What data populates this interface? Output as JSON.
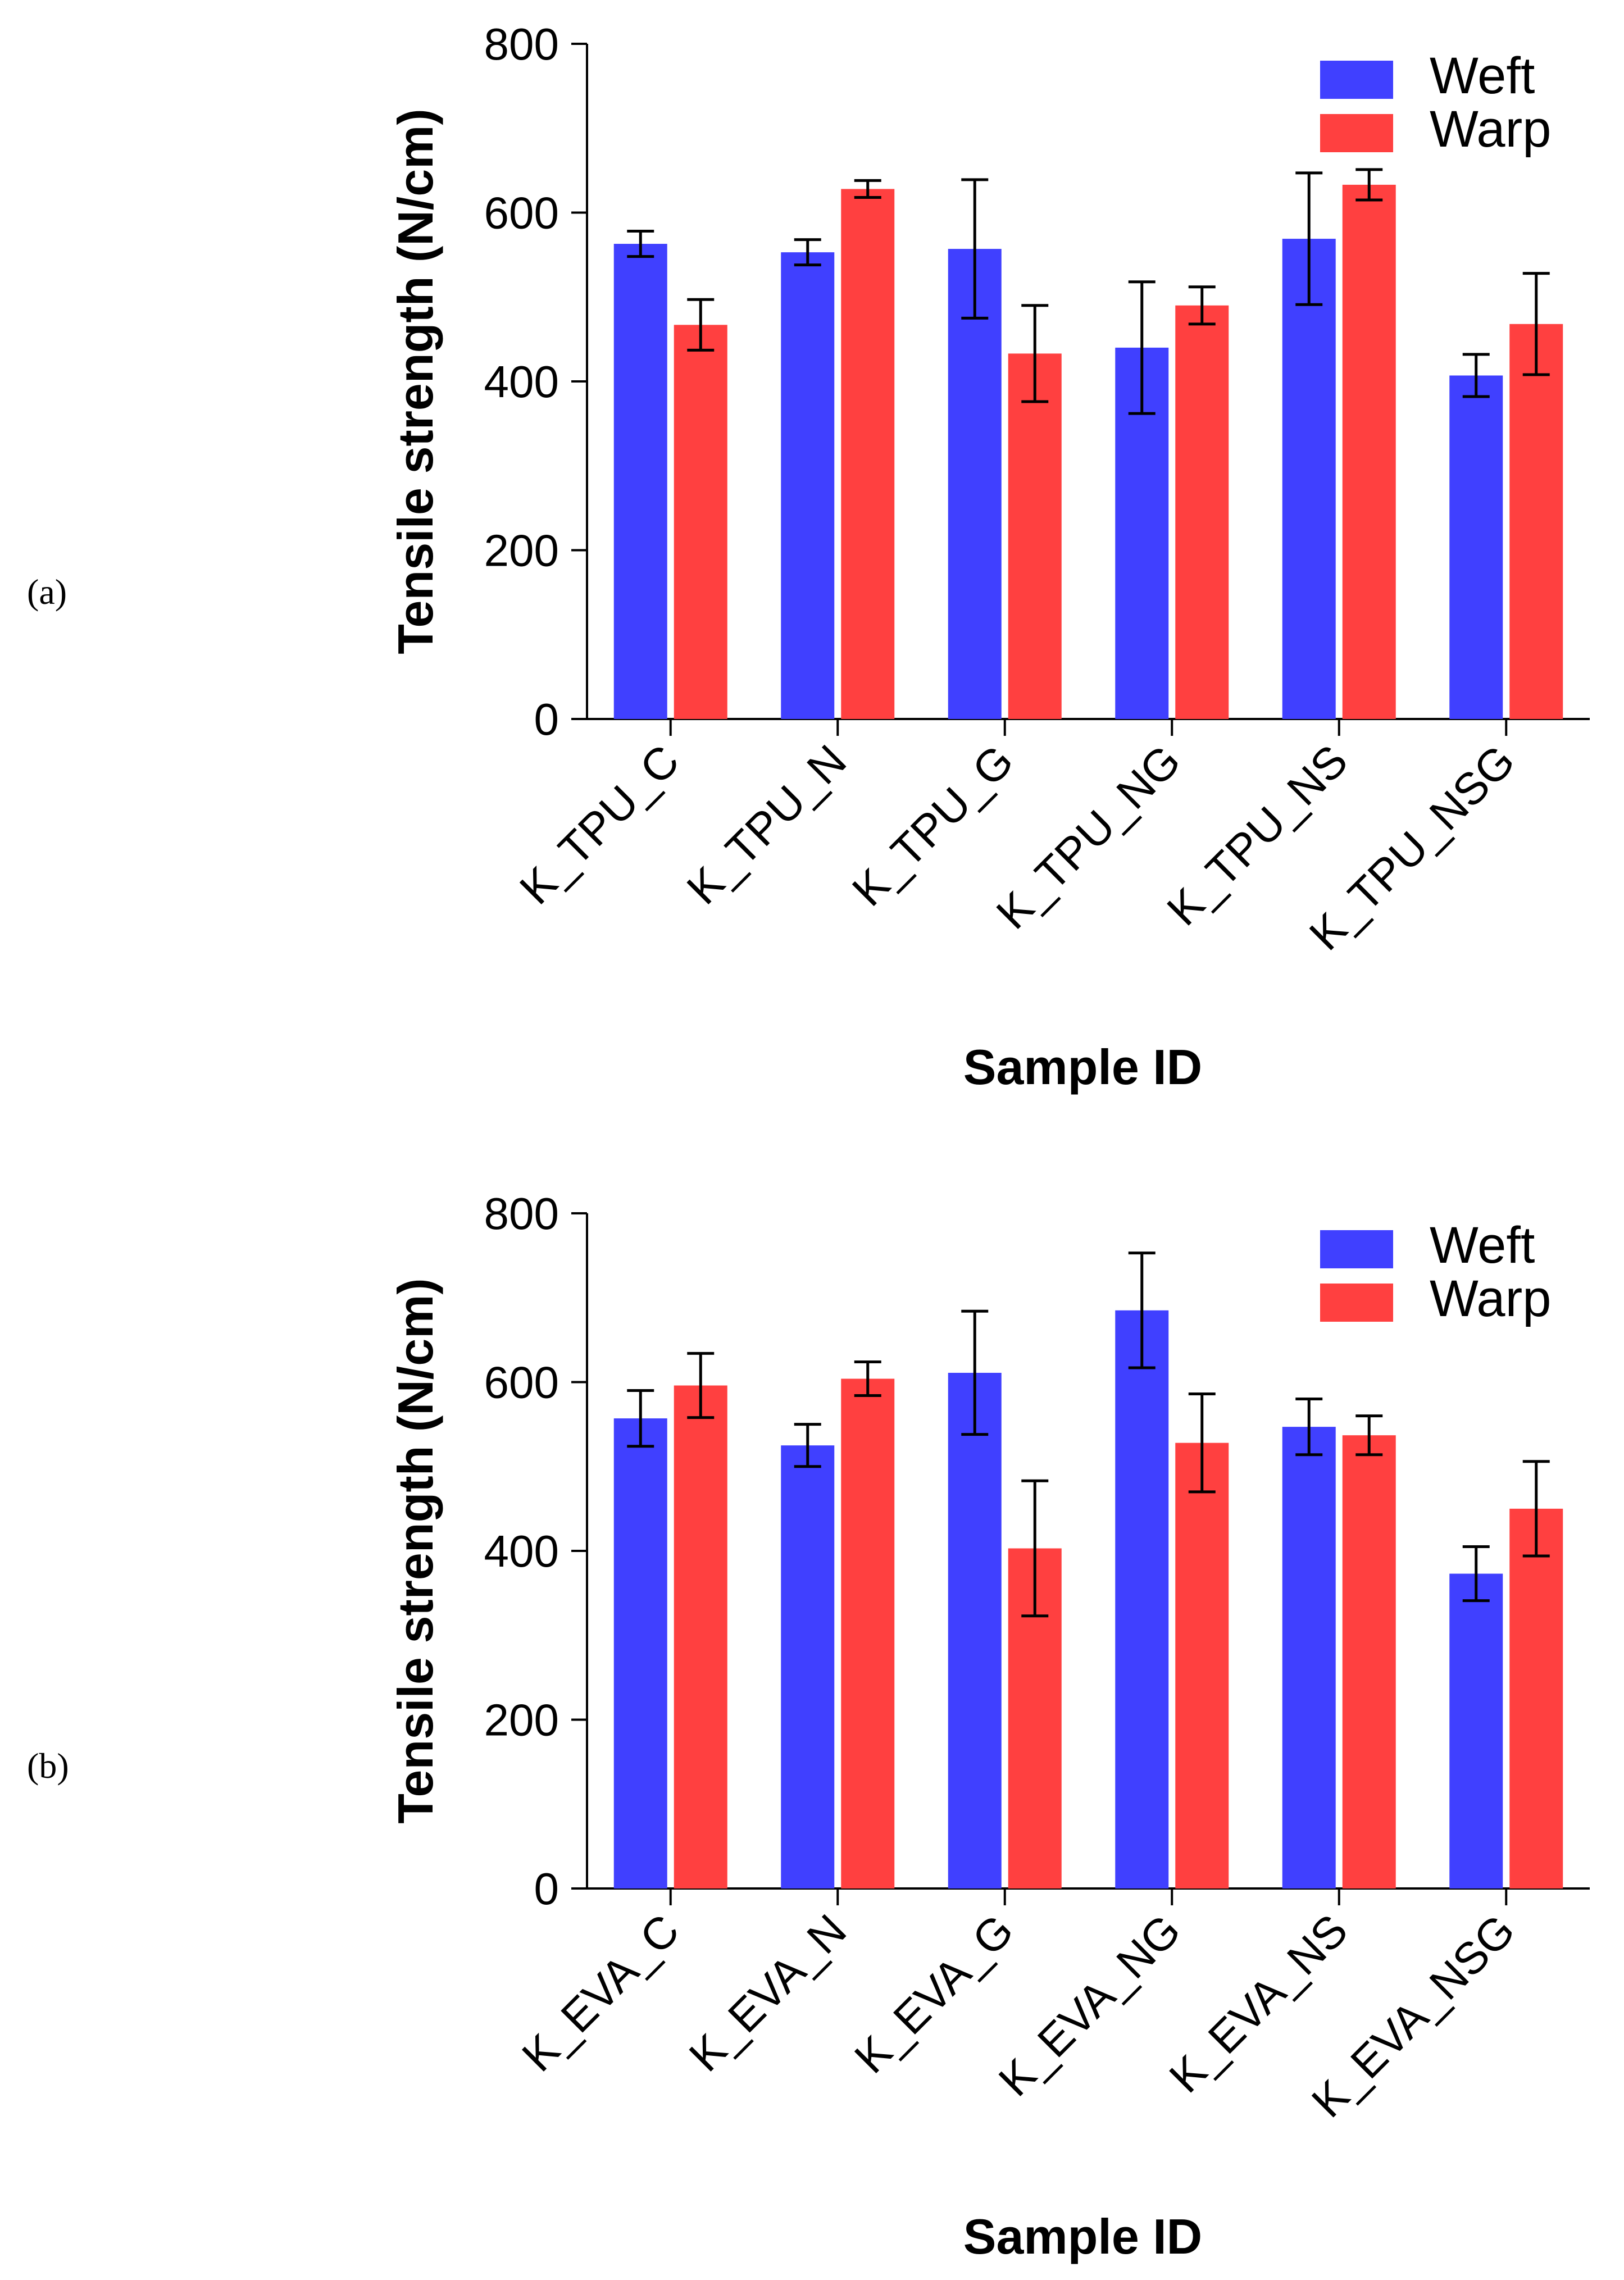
{
  "figure": {
    "panels": [
      "(a)",
      "(b)"
    ]
  },
  "colors": {
    "weft": "#4040FF",
    "warp": "#FF4040",
    "axis": "#000000"
  },
  "chart_data": [
    {
      "type": "bar",
      "panel_label": "(a)",
      "title": "",
      "xlabel": "Sample ID",
      "ylabel": "Tensile strength (N/cm)",
      "ylim": [
        0,
        800
      ],
      "yticks": [
        "0",
        "200",
        "400",
        "600",
        "800"
      ],
      "legend_position": "top-right",
      "categories": [
        "K_TPU_C",
        "K_TPU_N",
        "K_TPU_G",
        "K_TPU_NG",
        "K_TPU_NS",
        "K_TPU_NSG"
      ],
      "series": [
        {
          "name": "Weft",
          "values": [
            563,
            553,
            557,
            440,
            569,
            407
          ],
          "errors": [
            15,
            15,
            82,
            78,
            78,
            25
          ]
        },
        {
          "name": "Warp",
          "values": [
            467,
            628,
            433,
            490,
            633,
            468
          ],
          "errors": [
            30,
            10,
            57,
            22,
            18,
            60
          ]
        }
      ]
    },
    {
      "type": "bar",
      "panel_label": "(b)",
      "title": "",
      "xlabel": "Sample ID",
      "ylabel": "Tensile strength (N/cm)",
      "ylim": [
        0,
        800
      ],
      "yticks": [
        "0",
        "200",
        "400",
        "600",
        "800"
      ],
      "legend_position": "top-right",
      "categories": [
        "K_EVA_C",
        "K_EVA_N",
        "K_EVA_G",
        "K_EVA_NG",
        "K_EVA_NS",
        "K_EVA_NSG"
      ],
      "series": [
        {
          "name": "Weft",
          "values": [
            557,
            525,
            611,
            685,
            547,
            373
          ],
          "errors": [
            33,
            25,
            73,
            68,
            33,
            32
          ]
        },
        {
          "name": "Warp",
          "values": [
            596,
            604,
            403,
            528,
            537,
            450
          ],
          "errors": [
            38,
            20,
            80,
            58,
            23,
            56
          ]
        }
      ]
    }
  ]
}
